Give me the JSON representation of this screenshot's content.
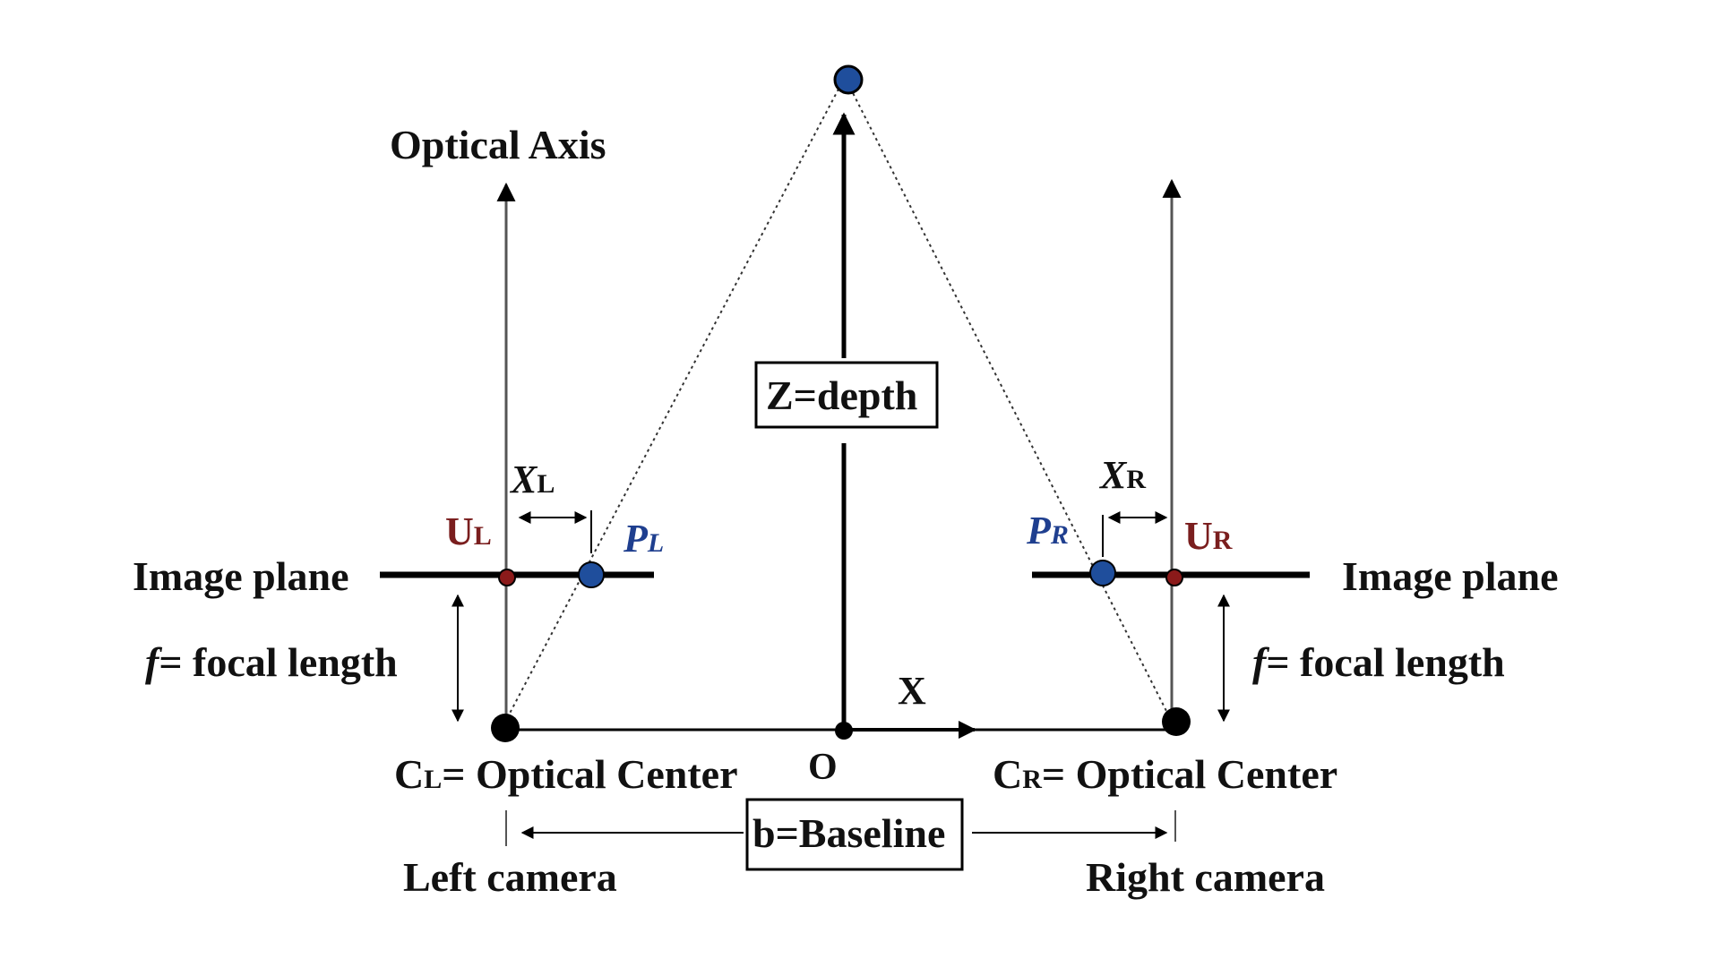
{
  "colors": {
    "line": "#000000",
    "thin_line": "#555555",
    "text": "#111111",
    "point_blue": "#1f4e9c",
    "point_red": "#8b1a1a",
    "label_red": "#7a1e1e",
    "label_blue": "#1f3f8f"
  },
  "labels": {
    "optical_axis": "Optical Axis",
    "z_depth": "Z=depth",
    "image_plane_left": "Image plane",
    "image_plane_right": "Image plane",
    "focal_left_f": "f",
    "focal_left_text": "= focal length",
    "focal_right_f": "f",
    "focal_right_text": "= focal length",
    "x_axis": "X",
    "origin": "O",
    "cl_main": "C",
    "cl_sub": "L",
    "cl_text": "= Optical Center",
    "cr_main": "C",
    "cr_sub": "R",
    "cr_text": "= Optical Center",
    "baseline": "b=Baseline",
    "left_camera": "Left camera",
    "right_camera": "Right camera",
    "ul_main": "U",
    "ul_sub": "L",
    "ur_main": "U",
    "ur_sub": "R",
    "xl_main": "X",
    "xl_sub": "L",
    "xr_main": "X",
    "xr_sub": "R",
    "pl_main": "P",
    "pl_sub": "L",
    "pr_main": "P",
    "pr_sub": "R"
  }
}
